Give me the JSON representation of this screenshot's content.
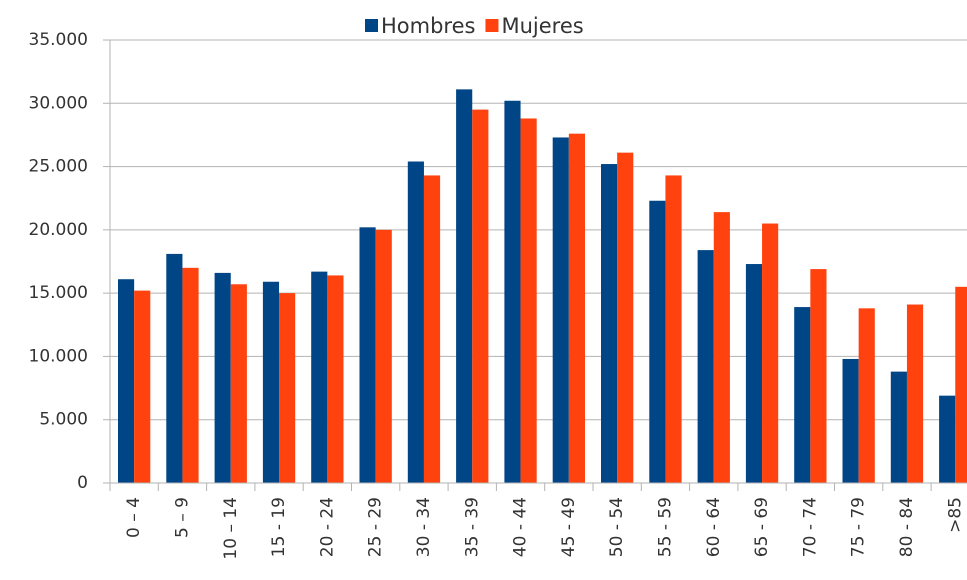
{
  "chart_data": {
    "type": "bar",
    "categories": [
      "0 – 4",
      "5 – 9",
      "10 – 14",
      "15 - 19",
      "20 - 24",
      "25 - 29",
      "30 - 34",
      "35 - 39",
      "40 - 44",
      "45 - 49",
      "50 - 54",
      "55 - 59",
      "60 - 64",
      "65 - 69",
      "70 - 74",
      "75 - 79",
      "80 - 84",
      ">85"
    ],
    "series": [
      {
        "name": "Hombres",
        "color": "#004586",
        "values": [
          16100,
          18100,
          16600,
          15900,
          16700,
          20200,
          25400,
          31100,
          30200,
          27300,
          25200,
          22300,
          18400,
          17300,
          13900,
          9800,
          8800,
          6900
        ]
      },
      {
        "name": "Mujeres",
        "color": "#ff420e",
        "values": [
          15200,
          17000,
          15700,
          15000,
          16400,
          20000,
          24300,
          29500,
          28800,
          27600,
          26100,
          24300,
          21400,
          20500,
          16900,
          13800,
          14100,
          15500
        ]
      }
    ],
    "ylim": [
      0,
      35000
    ],
    "yticks": [
      0,
      {
        "value": 5000,
        "label": "5.000"
      },
      {
        "value": 10000,
        "label": "10.000"
      },
      {
        "value": 15000,
        "label": "15.000"
      },
      {
        "value": 20000,
        "label": "20.000"
      },
      {
        "value": 25000,
        "label": "25.000"
      },
      {
        "value": 30000,
        "label": "30.000"
      },
      {
        "value": 35000,
        "label": "35.000"
      }
    ],
    "grid": true,
    "legend": "top"
  }
}
